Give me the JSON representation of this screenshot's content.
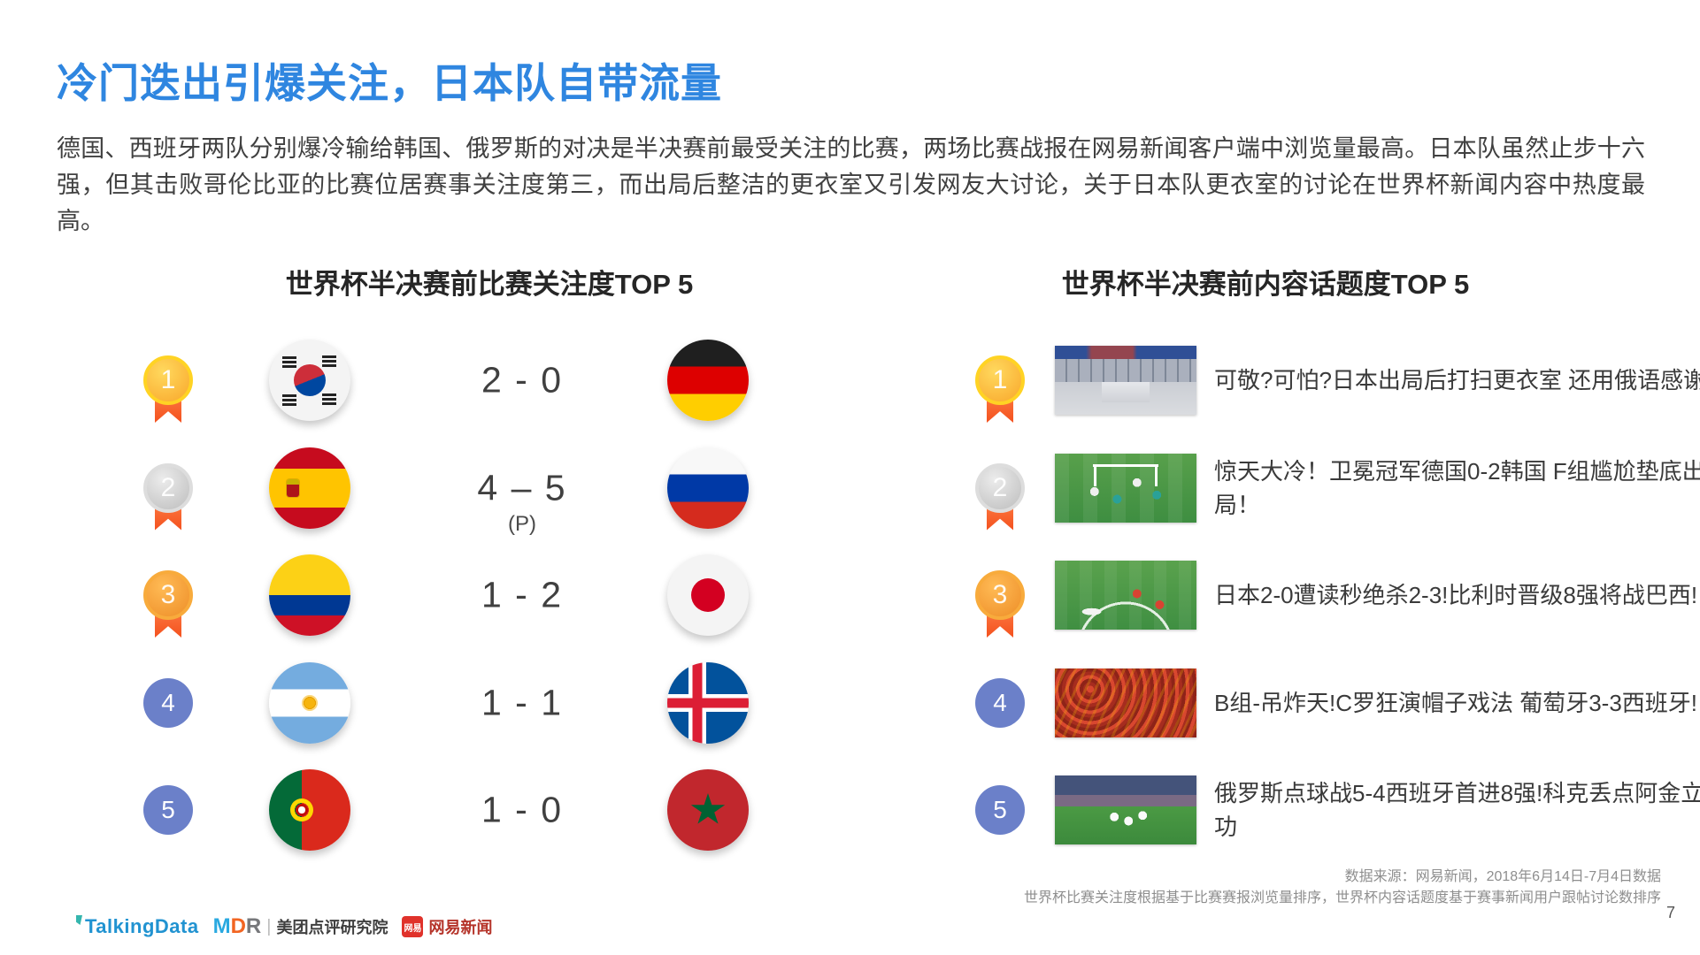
{
  "page": {
    "title": "冷门迭出引爆关注，日本队自带流量",
    "paragraph": "德国、西班牙两队分别爆冷输给韩国、俄罗斯的对决是半决赛前最受关注的比赛，两场比赛战报在网易新闻客户端中浏览量最高。日本队虽然止步十六强，但其击败哥伦比亚的比赛位居赛事关注度第三，而出局后整洁的更衣室又引发网友大讨论，关于日本队更衣室的讨论在世界杯新闻内容中热度最高。",
    "page_number": "7"
  },
  "colors": {
    "title_blue": "#2f86e0",
    "ribbon_orange": "#f4511e",
    "rank_plain_blue": "#6b80c9",
    "medal_gold": "#f9a72b",
    "medal_silver": "#bdbdbd",
    "medal_bronze": "#ee8e28",
    "netease_red": "#e0322b"
  },
  "left_section": {
    "title": "世界杯半决赛前比赛关注度TOP 5",
    "rows": [
      {
        "rank": "1",
        "medal": "gold",
        "home_flag": "south-korea",
        "score": "2 - 0",
        "score_note": "",
        "away_flag": "germany"
      },
      {
        "rank": "2",
        "medal": "silver",
        "home_flag": "spain",
        "score": "4 – 5",
        "score_note": "(P)",
        "away_flag": "russia"
      },
      {
        "rank": "3",
        "medal": "bronze",
        "home_flag": "colombia",
        "score": "1 - 2",
        "score_note": "",
        "away_flag": "japan"
      },
      {
        "rank": "4",
        "medal": "plain",
        "home_flag": "argentina",
        "score": "1 - 1",
        "score_note": "",
        "away_flag": "iceland"
      },
      {
        "rank": "5",
        "medal": "plain",
        "home_flag": "portugal",
        "score": "1 - 0",
        "score_note": "",
        "away_flag": "morocco"
      }
    ]
  },
  "right_section": {
    "title": "世界杯半决赛前内容话题度TOP 5",
    "rows": [
      {
        "rank": "1",
        "medal": "gold",
        "thumbnail": "locker-room",
        "headline": "可敬?可怕?日本出局后打扫更衣室 还用俄语感谢"
      },
      {
        "rank": "2",
        "medal": "silver",
        "thumbnail": "germany-korea-match",
        "headline": "惊天大冷！卫冕冠军德国0-2韩国 F组尴尬垫底出局！"
      },
      {
        "rank": "3",
        "medal": "bronze",
        "thumbnail": "japan-belgium-match",
        "headline": "日本2-0遭读秒绝杀2-3!比利时晋级8强将战巴西!"
      },
      {
        "rank": "4",
        "medal": "plain",
        "thumbnail": "portugal-fans",
        "headline": "B组-吊炸天!C罗狂演帽子戏法 葡萄牙3-3西班牙!"
      },
      {
        "rank": "5",
        "medal": "plain",
        "thumbnail": "russia-celebration",
        "headline": "俄罗斯点球战5-4西班牙首进8强!科克丢点阿金立功"
      }
    ]
  },
  "footer": {
    "source_line1": "数据来源：网易新闻，2018年6月14日-7月4日数据",
    "source_line2": "世界杯比赛关注度根据基于比赛赛报浏览量排序，世界杯内容话题度基于赛事新闻用户跟帖讨论数排序",
    "logos": {
      "talkingdata": {
        "label": "TalkingData"
      },
      "mdr": {
        "mark_m": "M",
        "mark_d": "D",
        "mark_r": "R",
        "sep": "|",
        "label": "美团点评研究院"
      },
      "netease": {
        "badge": "网易",
        "label": "网易新闻"
      }
    }
  }
}
